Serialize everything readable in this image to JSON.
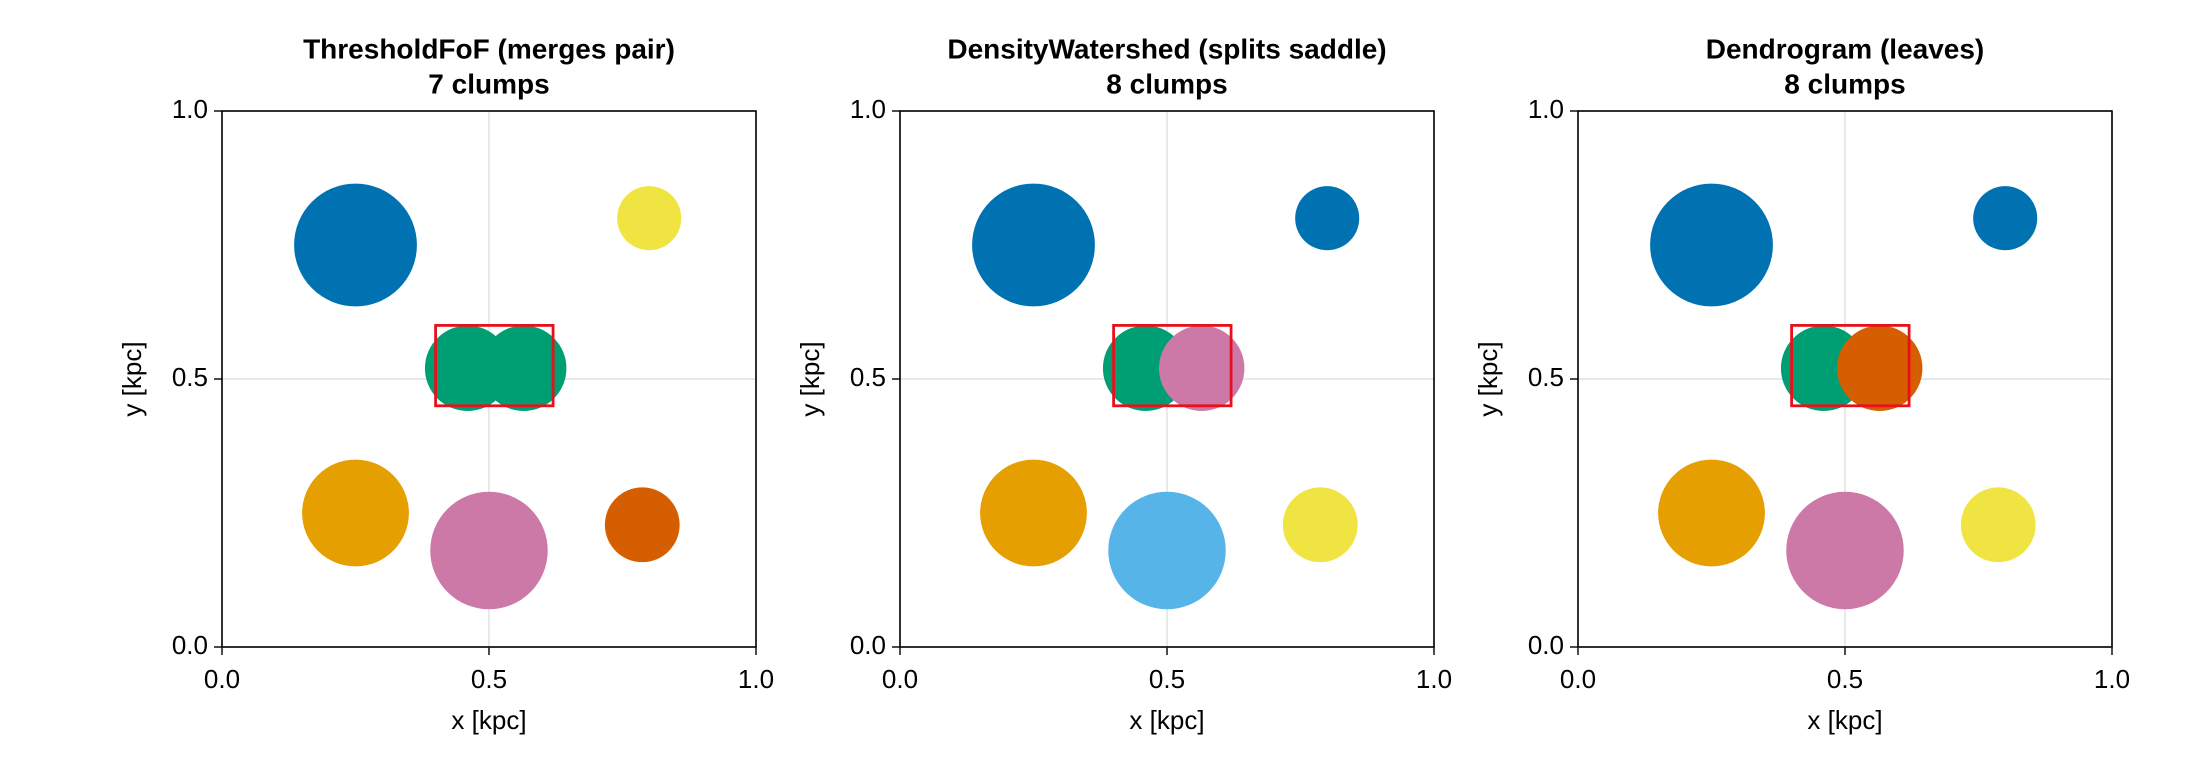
{
  "chart_data": [
    {
      "type": "scatter",
      "title": "ThresholdFoF (merges pair)",
      "subtitle": "7 clumps",
      "x_label": "x [kpc]",
      "y_label": "y [kpc]",
      "xlim": [
        0,
        1
      ],
      "ylim": [
        0,
        1
      ],
      "xticks": [
        {
          "value": 0,
          "label": "0.0"
        },
        {
          "value": 0.5,
          "label": "0.5"
        },
        {
          "value": 1,
          "label": "1.0"
        }
      ],
      "yticks": [
        {
          "value": 0,
          "label": "0.0"
        },
        {
          "value": 0.5,
          "label": "0.5"
        },
        {
          "value": 1,
          "label": "1.0"
        }
      ],
      "grid": true,
      "points": {
        "x": [
          0.25,
          0.8,
          0.46,
          0.565,
          0.25,
          0.5,
          0.787
        ],
        "y": [
          0.75,
          0.8,
          0.52,
          0.52,
          0.25,
          0.18,
          0.228
        ],
        "r": [
          0.115,
          0.06,
          0.08,
          0.08,
          0.1,
          0.11,
          0.07
        ],
        "colors": [
          "#0072b2",
          "#f0e442",
          "#009e73",
          "#009e73",
          "#e69f00",
          "#cc79a7",
          "#d55e00"
        ]
      },
      "highlight": {
        "x": [
          0.4,
          0.62
        ],
        "y": [
          0.45,
          0.6
        ],
        "color": "#e8101a"
      }
    },
    {
      "type": "scatter",
      "title": "DensityWatershed (splits saddle)",
      "subtitle": "8 clumps",
      "x_label": "x [kpc]",
      "y_label": "y [kpc]",
      "xlim": [
        0,
        1
      ],
      "ylim": [
        0,
        1
      ],
      "xticks": [
        {
          "value": 0,
          "label": "0.0"
        },
        {
          "value": 0.5,
          "label": "0.5"
        },
        {
          "value": 1,
          "label": "1.0"
        }
      ],
      "yticks": [
        {
          "value": 0,
          "label": "0.0"
        },
        {
          "value": 0.5,
          "label": "0.5"
        },
        {
          "value": 1,
          "label": "1.0"
        }
      ],
      "grid": true,
      "points": {
        "x": [
          0.25,
          0.8,
          0.46,
          0.565,
          0.25,
          0.5,
          0.787
        ],
        "y": [
          0.75,
          0.8,
          0.52,
          0.52,
          0.25,
          0.18,
          0.228
        ],
        "r": [
          0.115,
          0.06,
          0.08,
          0.08,
          0.1,
          0.11,
          0.07
        ],
        "colors": [
          "#0072b2",
          "#0072b2",
          "#009e73",
          "#cc79a7",
          "#e69f00",
          "#56b4e9",
          "#f0e442"
        ]
      },
      "highlight": {
        "x": [
          0.4,
          0.62
        ],
        "y": [
          0.45,
          0.6
        ],
        "color": "#e8101a"
      }
    },
    {
      "type": "scatter",
      "title": "Dendrogram (leaves)",
      "subtitle": "8 clumps",
      "x_label": "x [kpc]",
      "y_label": "y [kpc]",
      "xlim": [
        0,
        1
      ],
      "ylim": [
        0,
        1
      ],
      "xticks": [
        {
          "value": 0,
          "label": "0.0"
        },
        {
          "value": 0.5,
          "label": "0.5"
        },
        {
          "value": 1,
          "label": "1.0"
        }
      ],
      "yticks": [
        {
          "value": 0,
          "label": "0.0"
        },
        {
          "value": 0.5,
          "label": "0.5"
        },
        {
          "value": 1,
          "label": "1.0"
        }
      ],
      "grid": true,
      "points": {
        "x": [
          0.25,
          0.8,
          0.46,
          0.565,
          0.25,
          0.5,
          0.787
        ],
        "y": [
          0.75,
          0.8,
          0.52,
          0.52,
          0.25,
          0.18,
          0.228
        ],
        "r": [
          0.115,
          0.06,
          0.08,
          0.08,
          0.1,
          0.11,
          0.07
        ],
        "colors": [
          "#0072b2",
          "#0072b2",
          "#009e73",
          "#d55e00",
          "#e69f00",
          "#cc79a7",
          "#f0e442"
        ]
      },
      "highlight": {
        "x": [
          0.4,
          0.62
        ],
        "y": [
          0.45,
          0.6
        ],
        "color": "#e8101a"
      }
    }
  ]
}
